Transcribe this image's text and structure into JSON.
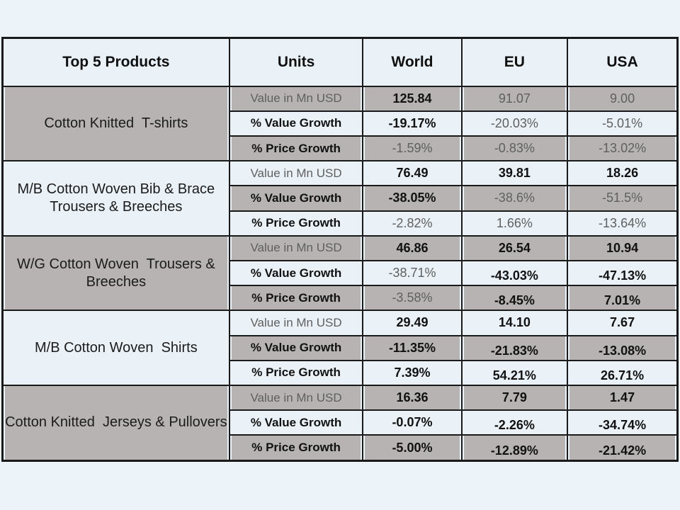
{
  "colors": {
    "page_background": "#ecf3f9",
    "cell_light": "#eaf2f8",
    "cell_gray": "#b7b3b3",
    "border": "#1a1a1a",
    "text_strong": "#111111",
    "text_muted": "#5f5f5f"
  },
  "chart_data": {
    "type": "table",
    "title": "Top 5 Products export values and growth",
    "columns": [
      "Top 5 Products",
      "Units",
      "World",
      "EU",
      "USA"
    ],
    "metrics": [
      "Value in Mn USD",
      "% Value Growth",
      "% Price Growth"
    ],
    "products": [
      {
        "name": "Cotton Knitted  T-shirts",
        "rows": [
          {
            "unit": "Value in Mn USD",
            "unit_muted": true,
            "world": {
              "v": "125.84",
              "muted": false,
              "shifted": false
            },
            "eu": {
              "v": "91.07",
              "muted": true,
              "shifted": false
            },
            "usa": {
              "v": "9.00",
              "muted": true,
              "shifted": false
            }
          },
          {
            "unit": "% Value Growth",
            "unit_muted": false,
            "world": {
              "v": "-19.17%",
              "muted": false,
              "shifted": false
            },
            "eu": {
              "v": "-20.03%",
              "muted": true,
              "shifted": false
            },
            "usa": {
              "v": "-5.01%",
              "muted": true,
              "shifted": false
            }
          },
          {
            "unit": "% Price Growth",
            "unit_muted": false,
            "world": {
              "v": "-1.59%",
              "muted": true,
              "shifted": false
            },
            "eu": {
              "v": "-0.83%",
              "muted": true,
              "shifted": false
            },
            "usa": {
              "v": "-13.02%",
              "muted": true,
              "shifted": false
            }
          }
        ]
      },
      {
        "name": "M/B Cotton Woven Bib & Brace Trousers & Breeches",
        "rows": [
          {
            "unit": "Value in Mn USD",
            "unit_muted": true,
            "world": {
              "v": "76.49",
              "muted": false,
              "shifted": false
            },
            "eu": {
              "v": "39.81",
              "muted": false,
              "shifted": false
            },
            "usa": {
              "v": "18.26",
              "muted": false,
              "shifted": false
            }
          },
          {
            "unit": "% Value Growth",
            "unit_muted": false,
            "world": {
              "v": "-38.05%",
              "muted": false,
              "shifted": false
            },
            "eu": {
              "v": "-38.6%",
              "muted": true,
              "shifted": false
            },
            "usa": {
              "v": "-51.5%",
              "muted": true,
              "shifted": false
            }
          },
          {
            "unit": "% Price Growth",
            "unit_muted": false,
            "world": {
              "v": "-2.82%",
              "muted": true,
              "shifted": false
            },
            "eu": {
              "v": "1.66%",
              "muted": true,
              "shifted": false
            },
            "usa": {
              "v": "-13.64%",
              "muted": true,
              "shifted": false
            }
          }
        ]
      },
      {
        "name": "W/G Cotton Woven  Trousers & Breeches",
        "rows": [
          {
            "unit": "Value in Mn USD",
            "unit_muted": true,
            "world": {
              "v": "46.86",
              "muted": false,
              "shifted": false
            },
            "eu": {
              "v": "26.54",
              "muted": false,
              "shifted": false
            },
            "usa": {
              "v": "10.94",
              "muted": false,
              "shifted": false
            }
          },
          {
            "unit": "% Value Growth",
            "unit_muted": false,
            "world": {
              "v": "-38.71%",
              "muted": true,
              "shifted": false
            },
            "eu": {
              "v": "-43.03%",
              "muted": false,
              "shifted": true
            },
            "usa": {
              "v": "-47.13%",
              "muted": false,
              "shifted": true
            }
          },
          {
            "unit": "% Price Growth",
            "unit_muted": false,
            "world": {
              "v": "-3.58%",
              "muted": true,
              "shifted": false
            },
            "eu": {
              "v": "-8.45%",
              "muted": false,
              "shifted": true
            },
            "usa": {
              "v": "7.01%",
              "muted": false,
              "shifted": true
            }
          }
        ]
      },
      {
        "name": "M/B Cotton Woven  Shirts",
        "rows": [
          {
            "unit": "Value in Mn USD",
            "unit_muted": true,
            "world": {
              "v": "29.49",
              "muted": false,
              "shifted": false
            },
            "eu": {
              "v": "14.10",
              "muted": false,
              "shifted": false
            },
            "usa": {
              "v": "7.67",
              "muted": false,
              "shifted": false
            }
          },
          {
            "unit": "% Value Growth",
            "unit_muted": false,
            "world": {
              "v": "-11.35%",
              "muted": false,
              "shifted": false
            },
            "eu": {
              "v": "-21.83%",
              "muted": false,
              "shifted": true
            },
            "usa": {
              "v": "-13.08%",
              "muted": false,
              "shifted": true
            }
          },
          {
            "unit": "% Price Growth",
            "unit_muted": false,
            "world": {
              "v": "7.39%",
              "muted": false,
              "shifted": false
            },
            "eu": {
              "v": "54.21%",
              "muted": false,
              "shifted": true
            },
            "usa": {
              "v": "26.71%",
              "muted": false,
              "shifted": true
            }
          }
        ]
      },
      {
        "name": "Cotton Knitted  Jerseys & Pullovers",
        "rows": [
          {
            "unit": "Value in Mn USD",
            "unit_muted": true,
            "world": {
              "v": "16.36",
              "muted": false,
              "shifted": false
            },
            "eu": {
              "v": "7.79",
              "muted": false,
              "shifted": false
            },
            "usa": {
              "v": "1.47",
              "muted": false,
              "shifted": false
            }
          },
          {
            "unit": "% Value Growth",
            "unit_muted": false,
            "world": {
              "v": "-0.07%",
              "muted": false,
              "shifted": false
            },
            "eu": {
              "v": "-2.26%",
              "muted": false,
              "shifted": true
            },
            "usa": {
              "v": "-34.74%",
              "muted": false,
              "shifted": true
            }
          },
          {
            "unit": "% Price Growth",
            "unit_muted": false,
            "world": {
              "v": "-5.00%",
              "muted": false,
              "shifted": false
            },
            "eu": {
              "v": "-12.89%",
              "muted": false,
              "shifted": true
            },
            "usa": {
              "v": "-21.42%",
              "muted": false,
              "shifted": true
            }
          }
        ]
      }
    ]
  }
}
